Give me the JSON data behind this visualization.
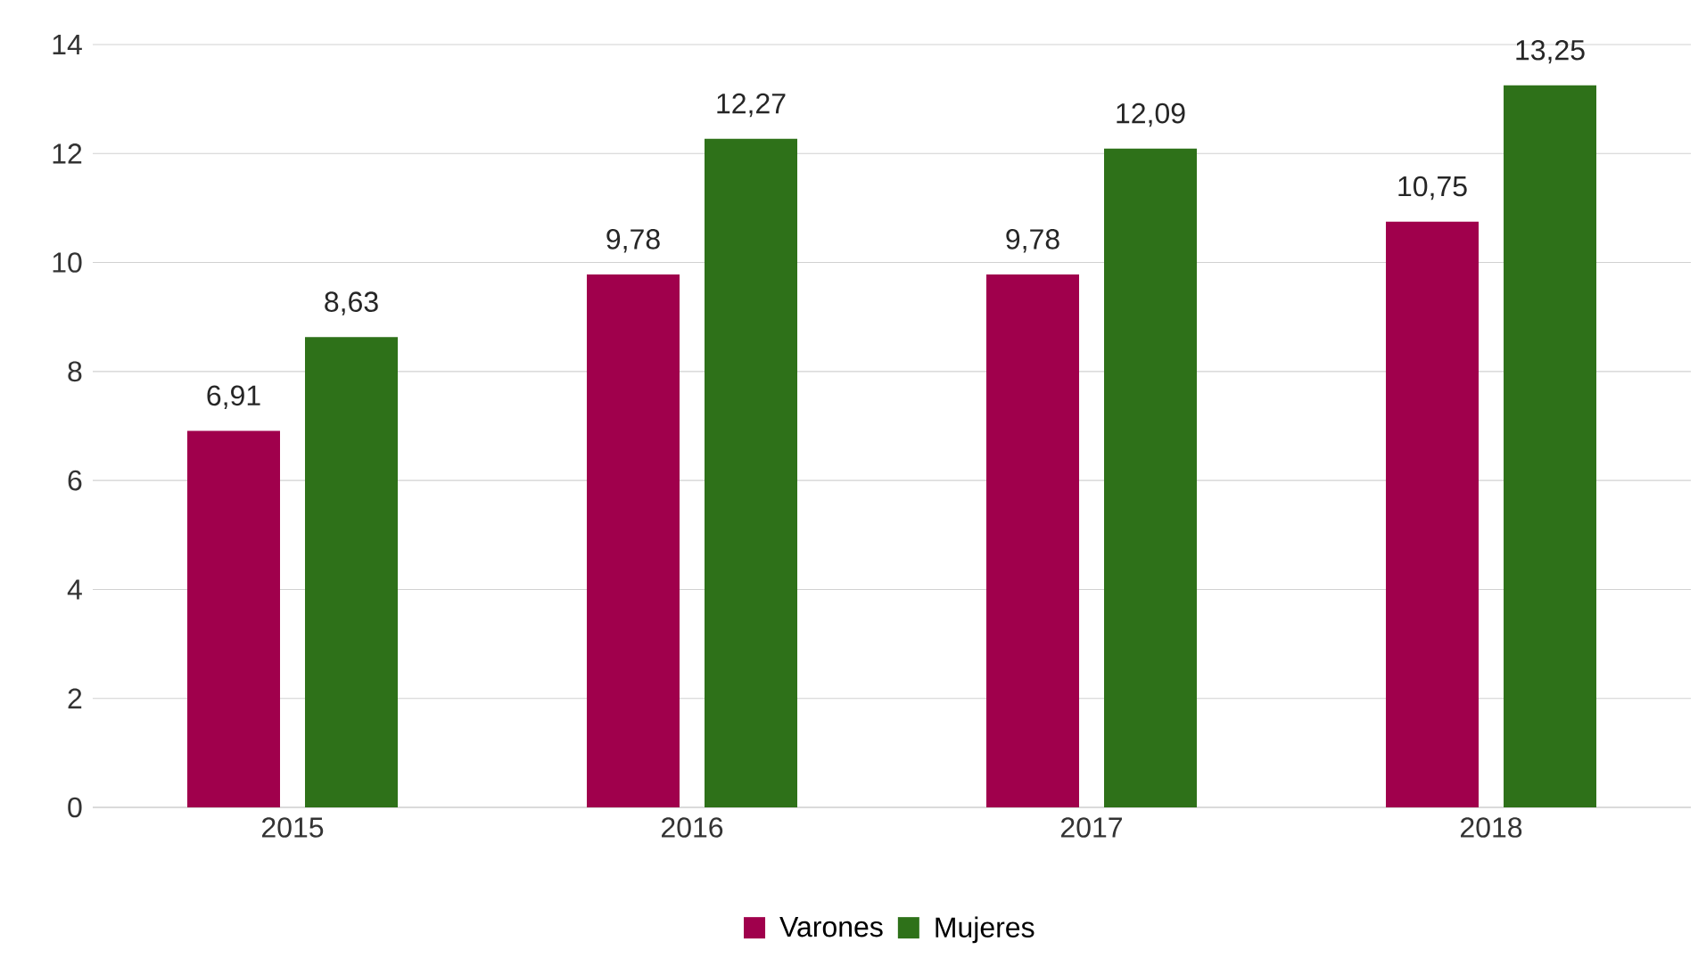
{
  "chart_data": {
    "type": "bar",
    "categories": [
      "2015",
      "2016",
      "2017",
      "2018"
    ],
    "series": [
      {
        "name": "Varones",
        "color": "#a0004c",
        "values": [
          6.91,
          9.78,
          9.78,
          10.75
        ],
        "value_labels": [
          "6,91",
          "9,78",
          "9,78",
          "10,75"
        ]
      },
      {
        "name": "Mujeres",
        "color": "#2e7119",
        "values": [
          8.63,
          12.27,
          12.09,
          13.25
        ],
        "value_labels": [
          "8,63",
          "12,27",
          "12,09",
          "13,25"
        ]
      }
    ],
    "ylim": [
      0,
      14
    ],
    "yticks": [
      0,
      2,
      4,
      6,
      8,
      10,
      12,
      14
    ],
    "grid": "y",
    "legend": "bottom"
  }
}
